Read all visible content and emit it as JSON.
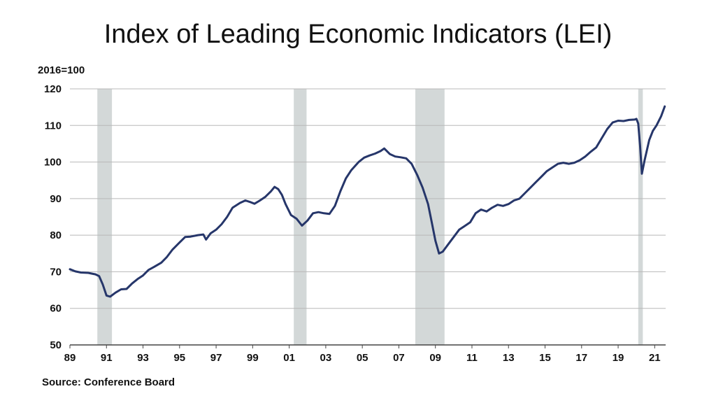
{
  "chart_data": {
    "type": "line",
    "title": "Index of Leading Economic Indicators (LEI)",
    "unit_label": "2016=100",
    "source": "Source: Conference Board",
    "xlabel": "",
    "ylabel": "",
    "xlim": [
      1989,
      2021.6
    ],
    "ylim": [
      50,
      120
    ],
    "y_ticks": [
      50,
      60,
      70,
      80,
      90,
      100,
      110,
      120
    ],
    "x_ticks": [
      {
        "year": 1989,
        "label": "89"
      },
      {
        "year": 1991,
        "label": "91"
      },
      {
        "year": 1993,
        "label": "93"
      },
      {
        "year": 1995,
        "label": "95"
      },
      {
        "year": 1997,
        "label": "97"
      },
      {
        "year": 1999,
        "label": "99"
      },
      {
        "year": 2001,
        "label": "01"
      },
      {
        "year": 2003,
        "label": "03"
      },
      {
        "year": 2005,
        "label": "05"
      },
      {
        "year": 2007,
        "label": "07"
      },
      {
        "year": 2009,
        "label": "09"
      },
      {
        "year": 2011,
        "label": "11"
      },
      {
        "year": 2013,
        "label": "13"
      },
      {
        "year": 2015,
        "label": "15"
      },
      {
        "year": 2017,
        "label": "17"
      },
      {
        "year": 2019,
        "label": "19"
      },
      {
        "year": 2021,
        "label": "21"
      }
    ],
    "recessions": [
      [
        1990.5,
        1991.3
      ],
      [
        2001.25,
        2001.95
      ],
      [
        2007.9,
        2009.5
      ],
      [
        2020.1,
        2020.35
      ]
    ],
    "grid": true,
    "colors": {
      "line": "#26366a",
      "recession": "#d3d8d8",
      "grid": "#b8b8b8"
    },
    "series": [
      {
        "values": [
          [
            1989.0,
            70.7
          ],
          [
            1989.3,
            70.1
          ],
          [
            1989.6,
            69.8
          ],
          [
            1990.0,
            69.7
          ],
          [
            1990.4,
            69.3
          ],
          [
            1990.6,
            68.8
          ],
          [
            1990.8,
            66.5
          ],
          [
            1991.0,
            63.5
          ],
          [
            1991.2,
            63.2
          ],
          [
            1991.5,
            64.3
          ],
          [
            1991.8,
            65.2
          ],
          [
            1992.1,
            65.3
          ],
          [
            1992.4,
            66.8
          ],
          [
            1992.7,
            68.0
          ],
          [
            1993.0,
            69.0
          ],
          [
            1993.3,
            70.5
          ],
          [
            1993.6,
            71.3
          ],
          [
            1994.0,
            72.5
          ],
          [
            1994.3,
            74.0
          ],
          [
            1994.6,
            76.0
          ],
          [
            1995.0,
            78.0
          ],
          [
            1995.3,
            79.5
          ],
          [
            1995.6,
            79.6
          ],
          [
            1996.0,
            80.0
          ],
          [
            1996.3,
            80.2
          ],
          [
            1996.45,
            78.8
          ],
          [
            1996.7,
            80.5
          ],
          [
            1997.0,
            81.5
          ],
          [
            1997.3,
            83.0
          ],
          [
            1997.6,
            85.0
          ],
          [
            1997.9,
            87.5
          ],
          [
            1998.3,
            88.8
          ],
          [
            1998.6,
            89.5
          ],
          [
            1998.9,
            89.0
          ],
          [
            1999.1,
            88.6
          ],
          [
            1999.4,
            89.5
          ],
          [
            1999.7,
            90.5
          ],
          [
            2000.0,
            92.0
          ],
          [
            2000.2,
            93.2
          ],
          [
            2000.4,
            92.6
          ],
          [
            2000.6,
            91.0
          ],
          [
            2000.8,
            88.5
          ],
          [
            2001.1,
            85.5
          ],
          [
            2001.4,
            84.5
          ],
          [
            2001.7,
            82.6
          ],
          [
            2002.0,
            84.0
          ],
          [
            2002.3,
            86.0
          ],
          [
            2002.6,
            86.3
          ],
          [
            2002.9,
            86.0
          ],
          [
            2003.2,
            85.8
          ],
          [
            2003.5,
            88.0
          ],
          [
            2003.8,
            92.0
          ],
          [
            2004.1,
            95.5
          ],
          [
            2004.4,
            97.8
          ],
          [
            2004.8,
            100.0
          ],
          [
            2005.1,
            101.2
          ],
          [
            2005.4,
            101.8
          ],
          [
            2005.7,
            102.3
          ],
          [
            2006.0,
            103.0
          ],
          [
            2006.2,
            103.7
          ],
          [
            2006.5,
            102.2
          ],
          [
            2006.8,
            101.5
          ],
          [
            2007.1,
            101.3
          ],
          [
            2007.4,
            101.0
          ],
          [
            2007.7,
            99.5
          ],
          [
            2008.0,
            96.5
          ],
          [
            2008.3,
            93.0
          ],
          [
            2008.6,
            88.5
          ],
          [
            2008.8,
            83.5
          ],
          [
            2009.0,
            78.5
          ],
          [
            2009.2,
            75.0
          ],
          [
            2009.4,
            75.5
          ],
          [
            2009.7,
            77.5
          ],
          [
            2010.0,
            79.5
          ],
          [
            2010.3,
            81.5
          ],
          [
            2010.6,
            82.5
          ],
          [
            2010.9,
            83.5
          ],
          [
            2011.2,
            86.0
          ],
          [
            2011.5,
            87.0
          ],
          [
            2011.8,
            86.5
          ],
          [
            2012.1,
            87.5
          ],
          [
            2012.4,
            88.3
          ],
          [
            2012.7,
            88.0
          ],
          [
            2013.0,
            88.5
          ],
          [
            2013.3,
            89.5
          ],
          [
            2013.6,
            90.0
          ],
          [
            2013.9,
            91.5
          ],
          [
            2014.2,
            93.0
          ],
          [
            2014.5,
            94.5
          ],
          [
            2014.8,
            96.0
          ],
          [
            2015.1,
            97.5
          ],
          [
            2015.4,
            98.5
          ],
          [
            2015.7,
            99.5
          ],
          [
            2016.0,
            99.8
          ],
          [
            2016.3,
            99.5
          ],
          [
            2016.6,
            99.8
          ],
          [
            2016.9,
            100.5
          ],
          [
            2017.2,
            101.5
          ],
          [
            2017.5,
            102.8
          ],
          [
            2017.8,
            104.0
          ],
          [
            2018.1,
            106.5
          ],
          [
            2018.4,
            109.0
          ],
          [
            2018.7,
            110.8
          ],
          [
            2019.0,
            111.3
          ],
          [
            2019.3,
            111.2
          ],
          [
            2019.6,
            111.5
          ],
          [
            2019.9,
            111.6
          ],
          [
            2020.0,
            111.8
          ],
          [
            2020.1,
            110.5
          ],
          [
            2020.2,
            104.5
          ],
          [
            2020.3,
            96.8
          ],
          [
            2020.45,
            100.5
          ],
          [
            2020.7,
            106.0
          ],
          [
            2020.9,
            108.5
          ],
          [
            2021.1,
            110.0
          ],
          [
            2021.35,
            112.5
          ],
          [
            2021.55,
            115.2
          ]
        ]
      }
    ]
  }
}
